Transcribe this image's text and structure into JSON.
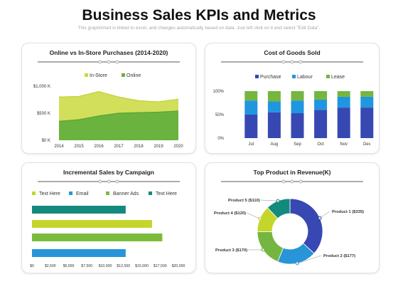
{
  "header": {
    "title": "Business Sales KPIs and Metrics",
    "subtitle": "This graph/chart is linked to excel, and changes automatically based on data. Just left click on it and select \"Edit Data\"."
  },
  "colors": {
    "instore": "#c9d93e",
    "online": "#6ab33e",
    "purchase": "#3748b3",
    "labour": "#2196e0",
    "lease": "#74b640",
    "teal": "#138a7e",
    "olive": "#c4d62c",
    "green": "#7bbb3c",
    "blue": "#2795d8"
  },
  "chart_data": [
    {
      "type": "area",
      "title": "Online vs In-Store Purchases (2014-2020)",
      "x": [
        "2014",
        "2015",
        "2016",
        "2017",
        "2018",
        "2019",
        "2020"
      ],
      "y_ticks": [
        "$0 K",
        "$500 K",
        "$1,000 K"
      ],
      "ylim": [
        0,
        1000
      ],
      "series": [
        {
          "name": "In-Store",
          "values": [
            800,
            810,
            900,
            800,
            730,
            710,
            760
          ]
        },
        {
          "name": "Online",
          "values": [
            350,
            380,
            450,
            500,
            510,
            520,
            540
          ]
        }
      ],
      "legend": "top"
    },
    {
      "type": "bar",
      "stacked": true,
      "title": "Cost of Goods Sold",
      "categories": [
        "Jul",
        "Aug",
        "Sep",
        "Oct",
        "Nov",
        "Dec"
      ],
      "y_ticks": [
        "0%",
        "50%",
        "100%"
      ],
      "ylim": [
        0,
        100
      ],
      "series": [
        {
          "name": "Purchase",
          "values": [
            50,
            55,
            53,
            60,
            65,
            65
          ]
        },
        {
          "name": "Labour",
          "values": [
            30,
            23,
            27,
            22,
            23,
            23
          ]
        },
        {
          "name": "Lease",
          "values": [
            20,
            22,
            20,
            18,
            12,
            12
          ]
        }
      ],
      "legend": "top"
    },
    {
      "type": "bar",
      "orientation": "horizontal",
      "title": "Incremental Sales by Campaign",
      "legend_items": [
        {
          "name": "Text Here",
          "color": "#c4d62c"
        },
        {
          "name": "Email",
          "color": "#2795d8"
        },
        {
          "name": "Banner Ads",
          "color": "#7bbb3c"
        },
        {
          "name": "Text Here",
          "color": "#138a7e"
        }
      ],
      "bars": [
        {
          "value": 12800,
          "color": "#138a7e"
        },
        {
          "value": 16400,
          "color": "#c4d62c"
        },
        {
          "value": 17800,
          "color": "#7bbb3c"
        },
        {
          "value": 12800,
          "color": "#2795d8"
        }
      ],
      "x_ticks": [
        "$0",
        "$2,500",
        "$5,000",
        "$7,500",
        "$10,000",
        "$12,500",
        "$15,000",
        "$17,500",
        "$20,000"
      ],
      "xlim": [
        0,
        20000
      ]
    },
    {
      "type": "pie",
      "donut": true,
      "title": "Top Product in Revenue(K)",
      "slices": [
        {
          "label": "Product 1 ($335)",
          "value": 335,
          "color": "#3748b3"
        },
        {
          "label": "Product 2 ($177)",
          "value": 177,
          "color": "#2795d8"
        },
        {
          "label": "Product 3 ($170)",
          "value": 170,
          "color": "#74b640"
        },
        {
          "label": "Product 4 ($120)",
          "value": 120,
          "color": "#c4d62c"
        },
        {
          "label": "Product 5 ($110)",
          "value": 110,
          "color": "#138a7e"
        }
      ]
    }
  ]
}
